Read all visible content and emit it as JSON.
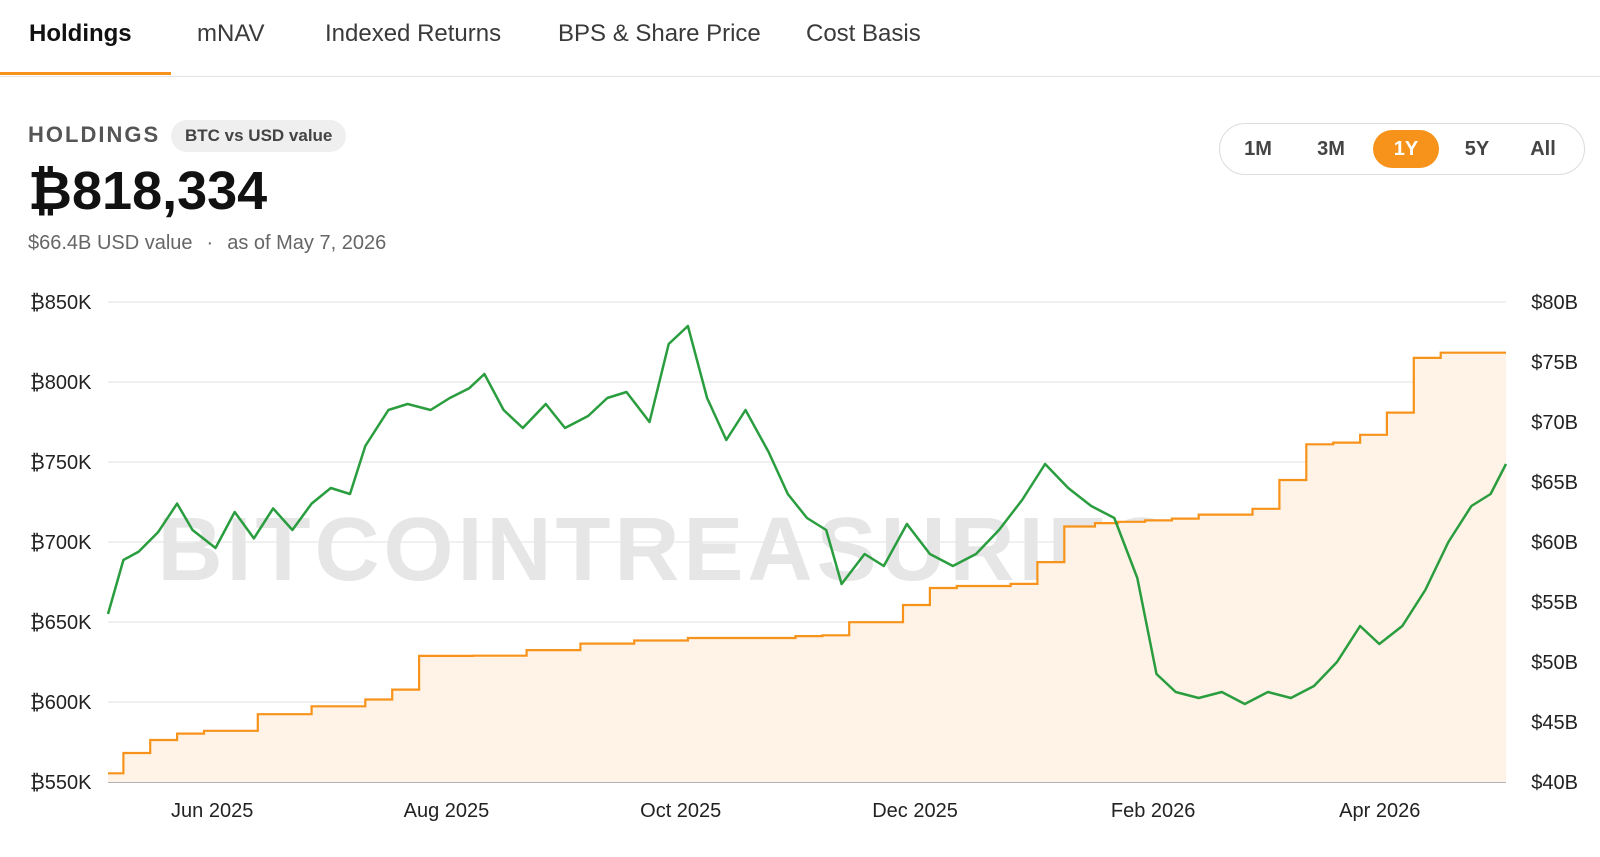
{
  "tabs": [
    {
      "label": "Holdings",
      "active": true
    },
    {
      "label": "mNAV",
      "active": false
    },
    {
      "label": "Indexed Returns",
      "active": false
    },
    {
      "label": "BPS & Share Price",
      "active": false
    },
    {
      "label": "Cost Basis",
      "active": false
    }
  ],
  "header": {
    "section_label": "HOLDINGS",
    "pill_label": "BTC vs USD value",
    "btc_value": "₿818,334",
    "usd_value": "$66.4B USD value",
    "separator": "·",
    "as_of": "as of May 7, 2026"
  },
  "range": {
    "options": [
      "1M",
      "3M",
      "1Y",
      "5Y",
      "All"
    ],
    "selected": "1Y"
  },
  "colors": {
    "accent": "#f7931a",
    "usd_line": "#2a9d3f",
    "btc_fill": "#fef3e6"
  },
  "chart_data": {
    "type": "line",
    "watermark": "BITCOINTREASURIES.NET",
    "x_labels": [
      "Jun 2025",
      "Aug 2025",
      "Oct 2025",
      "Dec 2025",
      "Feb 2026",
      "Apr 2026"
    ],
    "x_range": [
      "2025-05-08",
      "2026-05-07"
    ],
    "left_axis": {
      "ticks": [
        "₿850K",
        "₿800K",
        "₿750K",
        "₿700K",
        "₿650K",
        "₿600K",
        "₿550K"
      ],
      "ylim": [
        550000,
        850000
      ]
    },
    "right_axis": {
      "ticks": [
        "$80B",
        "$75B",
        "$70B",
        "$65B",
        "$60B",
        "$55B",
        "$50B",
        "$45B",
        "$40B"
      ],
      "ylim": [
        40,
        80
      ]
    },
    "grid": true,
    "series": [
      {
        "axis": "left",
        "style": "step-area",
        "x": [
          "2025-05-08",
          "2025-05-12",
          "2025-05-19",
          "2025-05-26",
          "2025-06-02",
          "2025-06-16",
          "2025-06-30",
          "2025-07-14",
          "2025-07-21",
          "2025-07-28",
          "2025-08-11",
          "2025-08-25",
          "2025-09-08",
          "2025-09-22",
          "2025-10-06",
          "2025-11-03",
          "2025-11-10",
          "2025-11-17",
          "2025-12-01",
          "2025-12-08",
          "2025-12-15",
          "2025-12-29",
          "2026-01-05",
          "2026-01-12",
          "2026-01-20",
          "2026-01-26",
          "2026-02-02",
          "2026-02-09",
          "2026-02-16",
          "2026-03-02",
          "2026-03-09",
          "2026-03-16",
          "2026-03-23",
          "2026-03-30",
          "2026-04-06",
          "2026-04-13",
          "2026-04-20",
          "2026-04-27",
          "2026-05-07"
        ],
        "values": [
          555450,
          568140,
          576230,
          580250,
          582000,
          592345,
          597325,
          601550,
          607770,
          628791,
          628946,
          632457,
          636505,
          638460,
          640031,
          641205,
          641692,
          649870,
          660624,
          671268,
          672497,
          673783,
          687410,
          709715,
          711790,
          712647,
          713502,
          714644,
          717131,
          720737,
          738731,
          761068,
          762099,
          766970,
          780897,
          815061,
          818334,
          818334,
          818334
        ]
      },
      {
        "axis": "right",
        "style": "line",
        "x": [
          "2025-05-08",
          "2025-05-12",
          "2025-05-16",
          "2025-05-21",
          "2025-05-26",
          "2025-05-30",
          "2025-06-05",
          "2025-06-10",
          "2025-06-15",
          "2025-06-20",
          "2025-06-25",
          "2025-06-30",
          "2025-07-05",
          "2025-07-10",
          "2025-07-14",
          "2025-07-20",
          "2025-07-25",
          "2025-07-31",
          "2025-08-05",
          "2025-08-10",
          "2025-08-14",
          "2025-08-19",
          "2025-08-24",
          "2025-08-30",
          "2025-09-04",
          "2025-09-10",
          "2025-09-15",
          "2025-09-20",
          "2025-09-26",
          "2025-10-01",
          "2025-10-06",
          "2025-10-11",
          "2025-10-16",
          "2025-10-21",
          "2025-10-27",
          "2025-11-01",
          "2025-11-06",
          "2025-11-11",
          "2025-11-15",
          "2025-11-21",
          "2025-11-26",
          "2025-12-02",
          "2025-12-08",
          "2025-12-14",
          "2025-12-20",
          "2025-12-26",
          "2026-01-01",
          "2026-01-07",
          "2026-01-13",
          "2026-01-19",
          "2026-01-25",
          "2026-01-31",
          "2026-02-05",
          "2026-02-10",
          "2026-02-16",
          "2026-02-22",
          "2026-02-28",
          "2026-03-06",
          "2026-03-12",
          "2026-03-18",
          "2026-03-24",
          "2026-03-30",
          "2026-04-04",
          "2026-04-10",
          "2026-04-16",
          "2026-04-22",
          "2026-04-28",
          "2026-05-03",
          "2026-05-07"
        ],
        "values": [
          54.0,
          58.5,
          59.2,
          60.8,
          63.2,
          61.0,
          59.5,
          62.5,
          60.3,
          62.8,
          61.0,
          63.2,
          64.5,
          64.0,
          68.0,
          71.0,
          71.5,
          71.0,
          72.0,
          72.8,
          74.0,
          71.0,
          69.5,
          71.5,
          69.5,
          70.5,
          72.0,
          72.5,
          70.0,
          76.5,
          78.0,
          72.0,
          68.5,
          71.0,
          67.5,
          64.0,
          62.0,
          61.0,
          56.5,
          59.0,
          58.0,
          61.5,
          59.0,
          58.0,
          59.0,
          61.0,
          63.5,
          66.5,
          64.5,
          63.0,
          62.0,
          57.0,
          49.0,
          47.5,
          47.0,
          47.5,
          46.5,
          47.5,
          47.0,
          48.0,
          50.0,
          53.0,
          51.5,
          53.0,
          56.0,
          60.0,
          63.0,
          64.0,
          66.5
        ]
      }
    ]
  }
}
